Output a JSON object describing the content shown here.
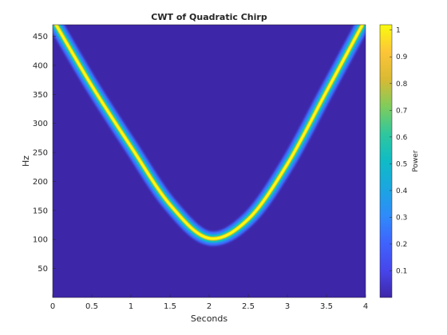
{
  "chart_data": {
    "type": "heatmap",
    "title": "CWT of Quadratic Chirp",
    "xlabel": "Seconds",
    "ylabel": "Hz",
    "xlim": [
      0,
      4
    ],
    "ylim": [
      0,
      470
    ],
    "x_ticks": [
      0,
      0.5,
      1,
      1.5,
      2,
      2.5,
      3,
      3.5,
      4
    ],
    "y_ticks": [
      50,
      100,
      150,
      200,
      250,
      300,
      350,
      400,
      450
    ],
    "x_tick_labels": [
      "0",
      "0.5",
      "1",
      "1.5",
      "2",
      "2.5",
      "3",
      "3.5",
      "4"
    ],
    "y_tick_labels": [
      "50",
      "100",
      "150",
      "200",
      "250",
      "300",
      "350",
      "400",
      "450"
    ],
    "colorbar": {
      "label": "Power",
      "range": [
        0,
        1.02
      ],
      "ticks": [
        0.1,
        0.2,
        0.3,
        0.4,
        0.5,
        0.6,
        0.7,
        0.8,
        0.9,
        1
      ],
      "tick_labels": [
        "0.1",
        "0.2",
        "0.3",
        "0.4",
        "0.5",
        "0.6",
        "0.7",
        "0.8",
        "0.9",
        "1"
      ],
      "colormap": "parula"
    },
    "ridge": {
      "description_units": "frequency in Hz vs time in seconds",
      "points": [
        {
          "x": 0.0,
          "y": 480
        },
        {
          "x": 0.5,
          "y": 365
        },
        {
          "x": 1.0,
          "y": 260
        },
        {
          "x": 1.5,
          "y": 160
        },
        {
          "x": 2.0,
          "y": 102
        },
        {
          "x": 2.5,
          "y": 135
        },
        {
          "x": 3.0,
          "y": 230
        },
        {
          "x": 3.5,
          "y": 355
        },
        {
          "x": 4.0,
          "y": 480
        }
      ],
      "peak_power": 1.0
    },
    "grid": false,
    "legend": "none"
  },
  "colors": {
    "background": "#3e26a8",
    "ridge_peak": "#f9fb0e",
    "ridge_mid": "#24c8a8",
    "ridge_edge": "#2f8bfa"
  }
}
